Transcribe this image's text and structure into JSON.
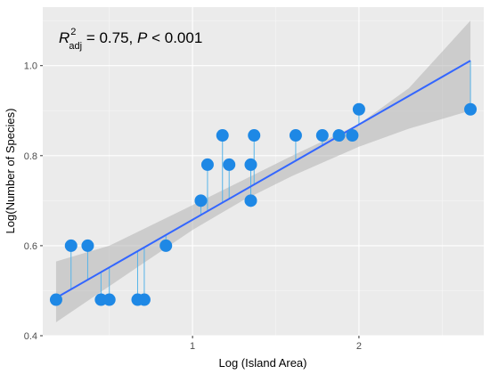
{
  "chart_data": {
    "type": "scatter",
    "title": "",
    "xlabel": "Log (Island Area)",
    "ylabel": "Log(Number of Species)",
    "xlim": [
      0.1,
      2.75
    ],
    "ylim": [
      0.4,
      1.13
    ],
    "x_ticks": [
      1,
      2
    ],
    "x_tick_labels": [
      "1",
      "2"
    ],
    "y_ticks": [
      0.4,
      0.6,
      0.8,
      1.0
    ],
    "y_tick_labels": [
      "0.4",
      "0.6",
      "0.8",
      "1.0"
    ],
    "grid": true,
    "annotation": {
      "r_symbol": "R",
      "r_sup": "2",
      "r_sub": "adj",
      "value_text": " = 0.75, ",
      "p_symbol": "P",
      "p_text": " < 0.001"
    },
    "series": [
      {
        "type": "points",
        "x": [
          0.18,
          0.27,
          0.37,
          0.45,
          0.5,
          0.67,
          0.71,
          0.84,
          1.05,
          1.09,
          1.18,
          1.22,
          1.35,
          1.35,
          1.37,
          1.62,
          1.78,
          1.88,
          1.96,
          2.0,
          2.67
        ],
        "y": [
          0.48,
          0.6,
          0.6,
          0.48,
          0.48,
          0.48,
          0.48,
          0.6,
          0.7,
          0.78,
          0.845,
          0.78,
          0.7,
          0.78,
          0.845,
          0.845,
          0.845,
          0.845,
          0.845,
          0.903,
          0.903
        ]
      },
      {
        "type": "regression",
        "intercept": 0.446,
        "slope": 0.2116,
        "ci": {
          "x": [
            0.18,
            0.5,
            1.0,
            1.3,
            1.6,
            2.0,
            2.3,
            2.67
          ],
          "lower": [
            0.43,
            0.51,
            0.635,
            0.7,
            0.755,
            0.82,
            0.86,
            0.9
          ],
          "upper": [
            0.565,
            0.6,
            0.69,
            0.745,
            0.8,
            0.87,
            0.95,
            1.1
          ]
        }
      }
    ],
    "colors": {
      "panel": "#ebebeb",
      "grid_major": "#ffffff",
      "point": "#1e88e5",
      "line": "#3366ff",
      "ribbon": "#b3b3b3",
      "residual": "#56b4e9"
    }
  }
}
